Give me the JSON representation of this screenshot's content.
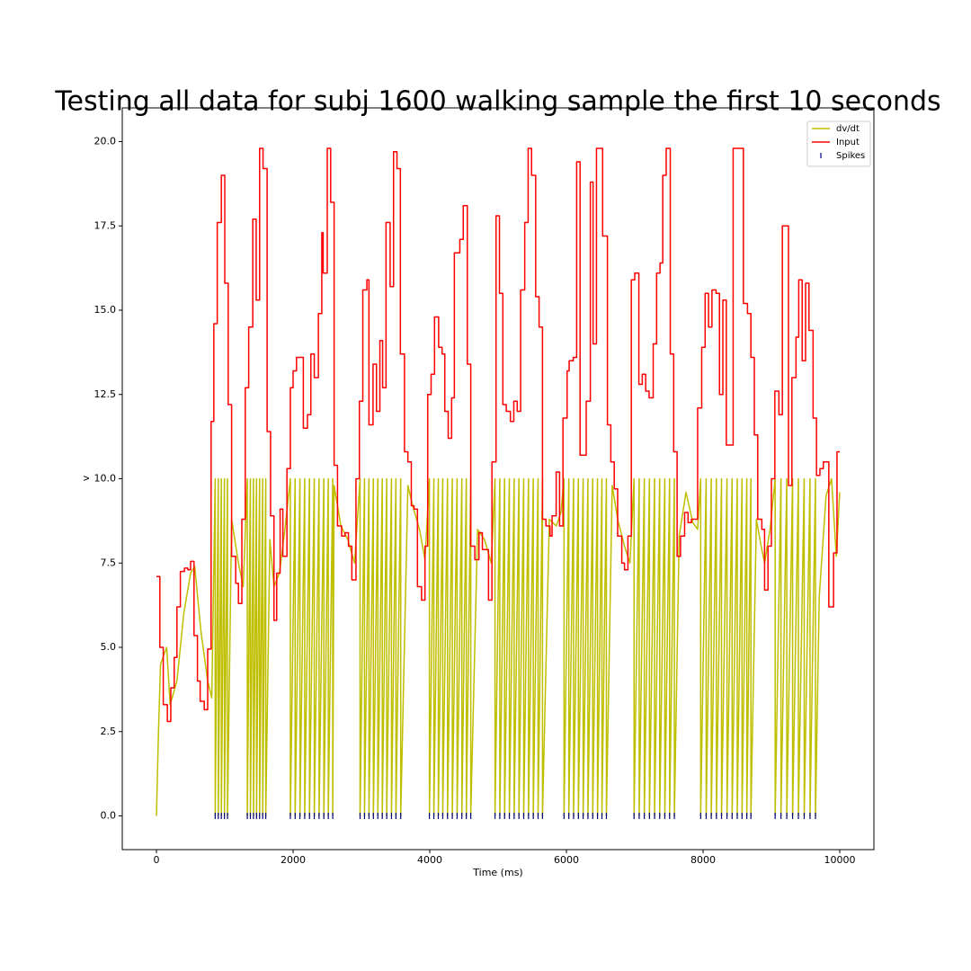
{
  "chart_data": {
    "type": "line",
    "title": "Testing all data for subj 1600 walking sample the first 10 seconds",
    "xlabel": "Time (ms)",
    "ylabel": "v",
    "xlim": [
      -500,
      10500
    ],
    "ylim": [
      -1,
      21
    ],
    "xticks": [
      0,
      2000,
      4000,
      6000,
      8000,
      10000
    ],
    "yticks": [
      {
        "value": 0,
        "label": "0.0"
      },
      2.5,
      {
        "value": 5,
        "label": "5.0"
      },
      7.5,
      {
        "value": 10,
        "label": "10.0"
      },
      12.5,
      {
        "value": 15,
        "label": "15.0"
      },
      17.5,
      {
        "value": 20,
        "label": "20.0"
      }
    ],
    "legend": "upper right",
    "series": [
      {
        "name": "dv/dt",
        "color": "#bfbf00",
        "drawstyle": "default",
        "x": [
          0,
          30,
          60,
          150,
          200,
          300,
          400,
          500,
          560,
          650,
          750,
          810,
          860,
          860,
          905,
          905,
          950,
          950,
          995,
          995,
          1040,
          1040,
          1100,
          1200,
          1270,
          1330,
          1330,
          1375,
          1375,
          1420,
          1420,
          1465,
          1465,
          1510,
          1510,
          1555,
          1555,
          1600,
          1600,
          1660,
          1720,
          1800,
          1880,
          1960,
          1960,
          2030,
          2030,
          2100,
          2100,
          2170,
          2170,
          2240,
          2240,
          2310,
          2310,
          2380,
          2380,
          2450,
          2450,
          2515,
          2515,
          2580,
          2580,
          2600,
          2700,
          2800,
          2900,
          2980,
          2980,
          3045,
          3045,
          3110,
          3110,
          3175,
          3175,
          3240,
          3240,
          3305,
          3305,
          3370,
          3370,
          3440,
          3440,
          3505,
          3505,
          3575,
          3575,
          3680,
          3750,
          3850,
          3930,
          3995,
          3995,
          4060,
          4060,
          4125,
          4125,
          4190,
          4190,
          4260,
          4260,
          4330,
          4330,
          4400,
          4400,
          4470,
          4470,
          4535,
          4535,
          4600,
          4600,
          4700,
          4800,
          4900,
          4955,
          4955,
          5025,
          5025,
          5095,
          5095,
          5165,
          5165,
          5235,
          5235,
          5305,
          5305,
          5375,
          5375,
          5445,
          5445,
          5515,
          5515,
          5585,
          5585,
          5650,
          5650,
          5750,
          5850,
          5920,
          5965,
          5965,
          6035,
          6035,
          6105,
          6105,
          6175,
          6175,
          6245,
          6245,
          6315,
          6315,
          6385,
          6385,
          6455,
          6455,
          6520,
          6520,
          6585,
          6585,
          6670,
          6750,
          6850,
          6930,
          6990,
          6990,
          7065,
          7065,
          7140,
          7140,
          7215,
          7215,
          7290,
          7290,
          7365,
          7365,
          7440,
          7440,
          7510,
          7510,
          7580,
          7580,
          7650,
          7750,
          7850,
          7920,
          7965,
          7965,
          8045,
          8045,
          8120,
          8120,
          8195,
          8195,
          8270,
          8270,
          8350,
          8350,
          8425,
          8425,
          8500,
          8500,
          8570,
          8570,
          8640,
          8640,
          8700,
          8700,
          8780,
          8850,
          8900,
          8980,
          9055,
          9055,
          9140,
          9140,
          9225,
          9225,
          9310,
          9310,
          9395,
          9395,
          9480,
          9480,
          9565,
          9565,
          9645,
          9645,
          9700,
          9800,
          9880,
          9950,
          10000
        ],
        "values": [
          0,
          2.5,
          4.5,
          5,
          3.3,
          4.0,
          6.0,
          7.2,
          7.4,
          5.5,
          4.0,
          3.5,
          10,
          0,
          10,
          0,
          10,
          0,
          10,
          0,
          10,
          0,
          8.8,
          7.5,
          6.8,
          10,
          0,
          10,
          0,
          10,
          0,
          10,
          0,
          10,
          0,
          10,
          0,
          10,
          0,
          8.2,
          6.8,
          7.2,
          8.5,
          10,
          0,
          10,
          0,
          10,
          0,
          10,
          0,
          10,
          0,
          10,
          0,
          10,
          0,
          10,
          0,
          10,
          0,
          10,
          0,
          9.8,
          8.6,
          8.2,
          7.5,
          10,
          0,
          10,
          0,
          10,
          0,
          10,
          0,
          10,
          0,
          10,
          0,
          10,
          0,
          10,
          0,
          10,
          0,
          10,
          0,
          9.8,
          9.2,
          8.5,
          7.6,
          10,
          0,
          10,
          0,
          10,
          0,
          10,
          0,
          10,
          0,
          10,
          0,
          10,
          0,
          10,
          0,
          10,
          0,
          10,
          0,
          8.5,
          8.2,
          7.5,
          10,
          0,
          10,
          0,
          10,
          0,
          10,
          0,
          10,
          0,
          10,
          0,
          10,
          0,
          10,
          0,
          10,
          0,
          10,
          0,
          10,
          0,
          8.8,
          8.6,
          9.0,
          10,
          0,
          10,
          0,
          10,
          0,
          10,
          0,
          10,
          0,
          10,
          0,
          10,
          0,
          10,
          0,
          10,
          0,
          10,
          0,
          9.8,
          8.8,
          8.0,
          7.5,
          10,
          0,
          10,
          0,
          10,
          0,
          10,
          0,
          10,
          0,
          10,
          0,
          10,
          0,
          10,
          0,
          10,
          0,
          8.3,
          9.6,
          8.7,
          8.5,
          10,
          0,
          10,
          0,
          10,
          0,
          10,
          0,
          10,
          0,
          10,
          0,
          10,
          0,
          10,
          0,
          10,
          0,
          10,
          0,
          10,
          0,
          8.8,
          8.0,
          7.5,
          8.5,
          10,
          0,
          10,
          0,
          10,
          0,
          10,
          0,
          10,
          0,
          10,
          0,
          10,
          0,
          10,
          0,
          6.5,
          9.5,
          10.0,
          7.7,
          9.6
        ]
      },
      {
        "name": "Input",
        "color": "#ff0000",
        "drawstyle": "steps-post",
        "x": [
          0,
          50,
          100,
          160,
          210,
          260,
          300,
          350,
          410,
          460,
          500,
          550,
          600,
          640,
          700,
          750,
          800,
          840,
          890,
          950,
          1000,
          1050,
          1100,
          1160,
          1200,
          1250,
          1300,
          1350,
          1410,
          1460,
          1510,
          1560,
          1620,
          1670,
          1720,
          1760,
          1810,
          1850,
          1910,
          1960,
          2000,
          2050,
          2150,
          2210,
          2260,
          2310,
          2370,
          2420,
          2440,
          2500,
          2550,
          2600,
          2650,
          2710,
          2760,
          2810,
          2860,
          2920,
          2970,
          3020,
          3080,
          3110,
          3170,
          3220,
          3270,
          3310,
          3360,
          3420,
          3470,
          3520,
          3570,
          3630,
          3680,
          3730,
          3770,
          3820,
          3880,
          3930,
          3970,
          4020,
          4070,
          4130,
          4180,
          4220,
          4270,
          4320,
          4360,
          4440,
          4490,
          4550,
          4600,
          4660,
          4720,
          4770,
          4860,
          4910,
          4970,
          5020,
          5070,
          5120,
          5180,
          5230,
          5280,
          5330,
          5390,
          5440,
          5490,
          5550,
          5600,
          5650,
          5700,
          5760,
          5790,
          5850,
          5900,
          5950,
          6010,
          6040,
          6100,
          6150,
          6200,
          6290,
          6350,
          6390,
          6440,
          6530,
          6600,
          6650,
          6700,
          6750,
          6810,
          6850,
          6900,
          6950,
          7000,
          7060,
          7110,
          7160,
          7210,
          7270,
          7320,
          7370,
          7410,
          7460,
          7520,
          7570,
          7620,
          7670,
          7730,
          7780,
          7830,
          7920,
          7980,
          8030,
          8080,
          8130,
          8190,
          8240,
          8290,
          8340,
          8440,
          8590,
          8650,
          8700,
          8750,
          8800,
          8860,
          8900,
          8950,
          9000,
          9050,
          9110,
          9160,
          9250,
          9300,
          9360,
          9400,
          9450,
          9500,
          9550,
          9610,
          9660,
          9710,
          9760,
          9840,
          9910,
          9960,
          10000
        ],
        "values": [
          7.1,
          5.0,
          3.3,
          2.8,
          3.8,
          4.7,
          6.2,
          7.25,
          7.35,
          7.3,
          7.55,
          5.35,
          4.0,
          3.4,
          3.15,
          4.95,
          11.7,
          14.6,
          17.6,
          19.0,
          15.8,
          12.2,
          7.7,
          6.9,
          6.3,
          8.8,
          12.7,
          14.5,
          17.7,
          15.3,
          19.8,
          19.2,
          11.4,
          8.9,
          5.8,
          7.2,
          9.1,
          7.7,
          10.3,
          12.7,
          13.2,
          13.6,
          11.5,
          11.9,
          13.7,
          13.0,
          14.9,
          17.3,
          16.1,
          19.8,
          18.2,
          10.4,
          8.6,
          8.3,
          8.4,
          8.0,
          7.0,
          10.0,
          12.3,
          15.6,
          15.9,
          11.6,
          13.4,
          12.0,
          14.1,
          12.7,
          17.6,
          15.7,
          19.7,
          19.2,
          13.7,
          10.8,
          10.5,
          9.2,
          9.1,
          6.8,
          6.4,
          8.0,
          12.5,
          13.1,
          14.8,
          13.9,
          13.7,
          12.0,
          11.2,
          12.4,
          16.7,
          17.1,
          18.1,
          13.4,
          8.0,
          7.6,
          8.4,
          7.9,
          6.4,
          10.5,
          17.8,
          15.5,
          12.2,
          12.0,
          11.7,
          12.3,
          12.0,
          15.6,
          17.6,
          19.8,
          19.0,
          15.4,
          14.5,
          8.8,
          8.6,
          8.3,
          8.9,
          10.2,
          8.6,
          11.8,
          13.2,
          13.5,
          13.6,
          19.4,
          10.7,
          12.3,
          18.8,
          14.0,
          19.8,
          17.2,
          11.6,
          10.5,
          9.7,
          8.3,
          7.5,
          7.3,
          8.3,
          15.9,
          16.1,
          12.8,
          13.1,
          12.6,
          12.4,
          14.0,
          16.1,
          16.4,
          19.0,
          19.8,
          13.7,
          10.8,
          7.7,
          8.3,
          9.0,
          8.7,
          8.8,
          12.1,
          13.9,
          15.5,
          14.5,
          15.6,
          15.5,
          12.5,
          15.3,
          11.0,
          19.8,
          15.2,
          14.9,
          13.6,
          11.3,
          8.8,
          8.5,
          6.7,
          8.0,
          10.0,
          12.6,
          11.9,
          17.5,
          9.8,
          13.0,
          14.2,
          15.9,
          13.5,
          15.8,
          14.4,
          11.8,
          10.1,
          10.3,
          10.5,
          6.2,
          7.8,
          10.8,
          10.8
        ]
      },
      {
        "name": "Spikes",
        "color": "#000080",
        "marker": "|",
        "linestyle": "none",
        "x": [
          860,
          905,
          950,
          995,
          1040,
          1330,
          1375,
          1420,
          1465,
          1510,
          1555,
          1600,
          1960,
          2030,
          2100,
          2170,
          2240,
          2310,
          2380,
          2450,
          2515,
          2580,
          2980,
          3045,
          3110,
          3175,
          3240,
          3305,
          3370,
          3440,
          3505,
          3575,
          3995,
          4060,
          4125,
          4190,
          4260,
          4330,
          4400,
          4470,
          4535,
          4600,
          4955,
          5025,
          5095,
          5165,
          5235,
          5305,
          5375,
          5445,
          5515,
          5585,
          5650,
          5965,
          6035,
          6105,
          6175,
          6245,
          6315,
          6385,
          6455,
          6520,
          6585,
          6990,
          7065,
          7140,
          7215,
          7290,
          7365,
          7440,
          7510,
          7580,
          7965,
          8045,
          8120,
          8195,
          8270,
          8350,
          8425,
          8500,
          8570,
          8640,
          8700,
          9055,
          9140,
          9225,
          9310,
          9395,
          9480,
          9565,
          9645
        ],
        "values": [
          0,
          0,
          0,
          0,
          0,
          0,
          0,
          0,
          0,
          0,
          0,
          0,
          0,
          0,
          0,
          0,
          0,
          0,
          0,
          0,
          0,
          0,
          0,
          0,
          0,
          0,
          0,
          0,
          0,
          0,
          0,
          0,
          0,
          0,
          0,
          0,
          0,
          0,
          0,
          0,
          0,
          0,
          0,
          0,
          0,
          0,
          0,
          0,
          0,
          0,
          0,
          0,
          0,
          0,
          0,
          0,
          0,
          0,
          0,
          0,
          0,
          0,
          0,
          0,
          0,
          0,
          0,
          0,
          0,
          0,
          0,
          0,
          0,
          0,
          0,
          0,
          0,
          0,
          0,
          0,
          0,
          0,
          0,
          0,
          0,
          0,
          0,
          0,
          0,
          0,
          0
        ]
      }
    ]
  }
}
